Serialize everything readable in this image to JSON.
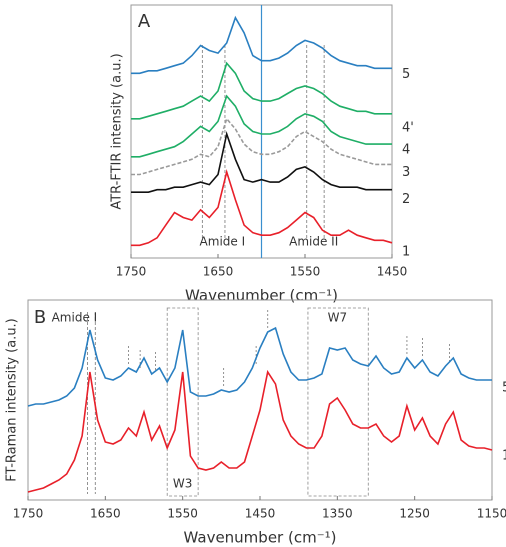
{
  "chart_data": [
    {
      "type": "line",
      "panel_label": "A",
      "y_label": "ATR-FTIR intensity  (a.u.)",
      "x_label": "Wavenumber (cm⁻¹)",
      "annotations": [
        "Amide I",
        "Amide II"
      ],
      "x": [
        1750,
        1740,
        1730,
        1720,
        1710,
        1700,
        1690,
        1680,
        1670,
        1660,
        1650,
        1640,
        1630,
        1620,
        1610,
        1600,
        1590,
        1580,
        1570,
        1560,
        1550,
        1540,
        1530,
        1520,
        1510,
        1500,
        1490,
        1480,
        1470,
        1460,
        1450
      ],
      "xlim": [
        1750,
        1450
      ],
      "xticks": [
        1750,
        1650,
        1550,
        1450
      ],
      "ylim": [
        0,
        10
      ],
      "vline": 1600,
      "vline_color": "#3a8fcf",
      "dashed_lines": [
        1668,
        1642,
        1548,
        1528
      ],
      "series": [
        {
          "name": "1",
          "color": "#e8202a",
          "values": [
            0.5,
            0.5,
            0.6,
            0.8,
            1.3,
            1.8,
            1.6,
            1.5,
            1.9,
            1.6,
            2.0,
            3.4,
            2.3,
            1.3,
            1.0,
            0.9,
            0.9,
            1.0,
            1.2,
            1.5,
            1.8,
            1.6,
            1.1,
            0.9,
            0.9,
            1.1,
            0.9,
            0.8,
            0.7,
            0.7,
            0.6
          ]
        },
        {
          "name": "2",
          "color": "#111111",
          "values": [
            2.6,
            2.6,
            2.6,
            2.7,
            2.7,
            2.8,
            2.8,
            2.9,
            3.0,
            2.9,
            3.3,
            4.9,
            3.9,
            3.1,
            3.0,
            3.1,
            3.0,
            3.0,
            3.2,
            3.5,
            3.6,
            3.4,
            3.1,
            2.9,
            2.8,
            2.8,
            2.8,
            2.7,
            2.7,
            2.7,
            2.7
          ]
        },
        {
          "name": "3",
          "color": "#9a9a9a",
          "dashed": true,
          "values": [
            3.3,
            3.3,
            3.4,
            3.5,
            3.6,
            3.7,
            3.8,
            3.9,
            4.1,
            4.0,
            4.4,
            5.5,
            5.1,
            4.5,
            4.2,
            4.1,
            4.1,
            4.2,
            4.4,
            4.8,
            5.0,
            4.8,
            4.6,
            4.3,
            4.1,
            4.0,
            3.9,
            3.8,
            3.7,
            3.7,
            3.7
          ]
        },
        {
          "name": "4",
          "color": "#1fae66",
          "values": [
            4.0,
            4.0,
            4.1,
            4.2,
            4.3,
            4.4,
            4.6,
            4.9,
            5.2,
            5.0,
            5.4,
            6.4,
            6.0,
            5.3,
            5.0,
            4.9,
            4.9,
            5.0,
            5.2,
            5.5,
            5.7,
            5.6,
            5.4,
            5.0,
            4.8,
            4.7,
            4.6,
            4.5,
            4.5,
            4.5,
            4.5
          ]
        },
        {
          "name": "4'",
          "color": "#1fae66",
          "values": [
            5.5,
            5.5,
            5.6,
            5.7,
            5.8,
            5.9,
            6.0,
            6.2,
            6.4,
            6.2,
            6.6,
            7.7,
            7.3,
            6.6,
            6.3,
            6.2,
            6.2,
            6.3,
            6.5,
            6.7,
            6.8,
            6.7,
            6.5,
            6.2,
            6.0,
            5.9,
            5.8,
            5.8,
            5.7,
            5.7,
            5.7
          ]
        },
        {
          "name": "5",
          "color": "#2a7fc1",
          "values": [
            7.3,
            7.3,
            7.4,
            7.4,
            7.5,
            7.6,
            7.7,
            8.0,
            8.4,
            8.2,
            8.1,
            8.5,
            9.5,
            8.9,
            8.0,
            7.8,
            7.8,
            7.9,
            8.1,
            8.4,
            8.6,
            8.5,
            8.3,
            8.0,
            7.8,
            7.7,
            7.6,
            7.6,
            7.5,
            7.5,
            7.5
          ]
        }
      ]
    },
    {
      "type": "line",
      "panel_label": "B",
      "y_label": "FT-Raman intensity  (a.u.)",
      "x_label": "Wavenumber (cm⁻¹)",
      "annotations": [
        "Amide I",
        "W3",
        "W7"
      ],
      "x": [
        1750,
        1740,
        1730,
        1720,
        1710,
        1700,
        1690,
        1680,
        1670,
        1660,
        1650,
        1640,
        1630,
        1620,
        1610,
        1600,
        1590,
        1580,
        1570,
        1560,
        1550,
        1540,
        1530,
        1520,
        1510,
        1500,
        1490,
        1480,
        1470,
        1460,
        1450,
        1440,
        1430,
        1420,
        1410,
        1400,
        1390,
        1380,
        1370,
        1360,
        1350,
        1340,
        1330,
        1320,
        1310,
        1300,
        1290,
        1280,
        1270,
        1260,
        1250,
        1240,
        1230,
        1220,
        1210,
        1200,
        1190,
        1180,
        1170,
        1160,
        1150
      ],
      "xlim": [
        1750,
        1150
      ],
      "xticks": [
        1750,
        1650,
        1550,
        1450,
        1350,
        1250,
        1150
      ],
      "ylim": [
        0,
        10
      ],
      "dashed_lines": [
        1673,
        1663
      ],
      "peak_ticks": [
        1620,
        1605,
        1585,
        1497,
        1455,
        1440,
        1260,
        1240,
        1205
      ],
      "boxes": [
        [
          1570,
          1530
        ],
        [
          1388,
          1310
        ]
      ],
      "series": [
        {
          "name": "1",
          "color": "#e8202a",
          "values": [
            0.4,
            0.5,
            0.6,
            0.8,
            1.0,
            1.3,
            2.0,
            3.2,
            6.4,
            4.0,
            2.9,
            2.8,
            3.0,
            3.6,
            3.2,
            4.4,
            3.0,
            3.7,
            2.6,
            3.5,
            6.4,
            2.2,
            1.6,
            1.5,
            1.6,
            1.9,
            1.6,
            1.6,
            1.9,
            3.2,
            4.5,
            6.4,
            5.8,
            4.0,
            3.2,
            2.8,
            2.6,
            2.6,
            3.2,
            4.8,
            5.1,
            4.5,
            3.8,
            3.6,
            3.6,
            3.8,
            3.2,
            2.9,
            3.2,
            4.7,
            3.5,
            4.1,
            3.2,
            2.8,
            3.8,
            4.4,
            3.0,
            2.7,
            2.6,
            2.6,
            2.5
          ]
        },
        {
          "name": "5",
          "color": "#2a7fc1",
          "values": [
            4.7,
            4.8,
            4.8,
            4.9,
            5.0,
            5.2,
            5.6,
            6.6,
            8.5,
            7.0,
            6.1,
            6.0,
            6.2,
            6.6,
            6.4,
            7.1,
            6.3,
            6.6,
            5.9,
            6.6,
            8.5,
            5.4,
            5.2,
            5.2,
            5.3,
            5.5,
            5.4,
            5.5,
            5.9,
            6.6,
            7.6,
            8.4,
            8.6,
            7.3,
            6.4,
            6.0,
            6.0,
            6.1,
            6.3,
            7.6,
            7.5,
            7.6,
            7.0,
            6.8,
            6.7,
            7.2,
            6.6,
            6.3,
            6.4,
            7.1,
            6.6,
            7.0,
            6.4,
            6.2,
            6.7,
            7.1,
            6.3,
            6.1,
            6.0,
            6.0,
            6.0
          ]
        }
      ]
    }
  ]
}
